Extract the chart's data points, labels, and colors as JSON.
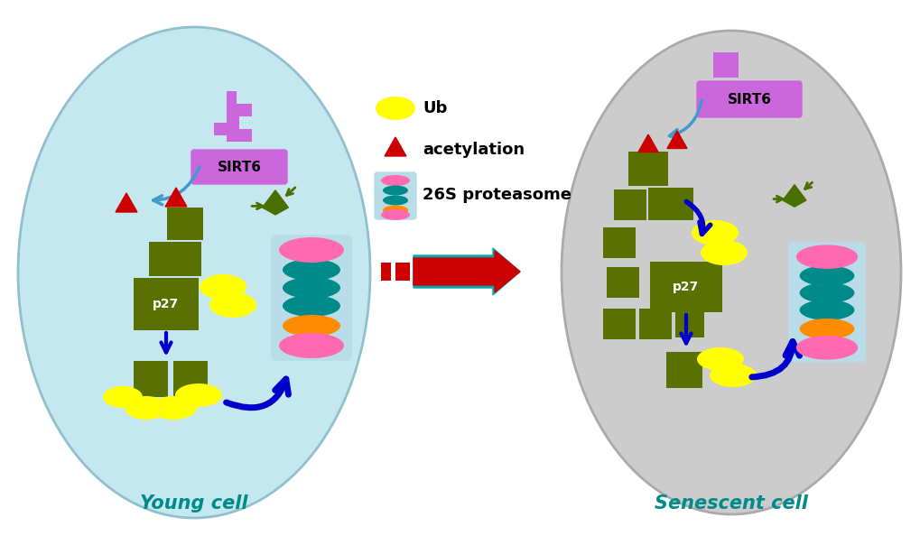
{
  "bg_color": "#ffffff",
  "young_cell_color": "#c5e8f0",
  "senescent_cell_color": "#cccccc",
  "olive_green": "#5a7000",
  "yellow_ub": "#ffff00",
  "pink_proteasome": "#ff69b4",
  "teal_proteasome": "#008b8b",
  "orange_proteasome": "#ff8c00",
  "purple_sirt6": "#cc66dd",
  "blue_arrow_dark": "#0000cc",
  "blue_arrow_light": "#4499cc",
  "red_color": "#cc0000",
  "teal_text": "#008b8b",
  "title_young": "Young cell",
  "title_senescent": "Senescent cell",
  "legend_ub": "Ub",
  "legend_acetylation": "acetylation",
  "legend_proteasome": "26S proteasome"
}
